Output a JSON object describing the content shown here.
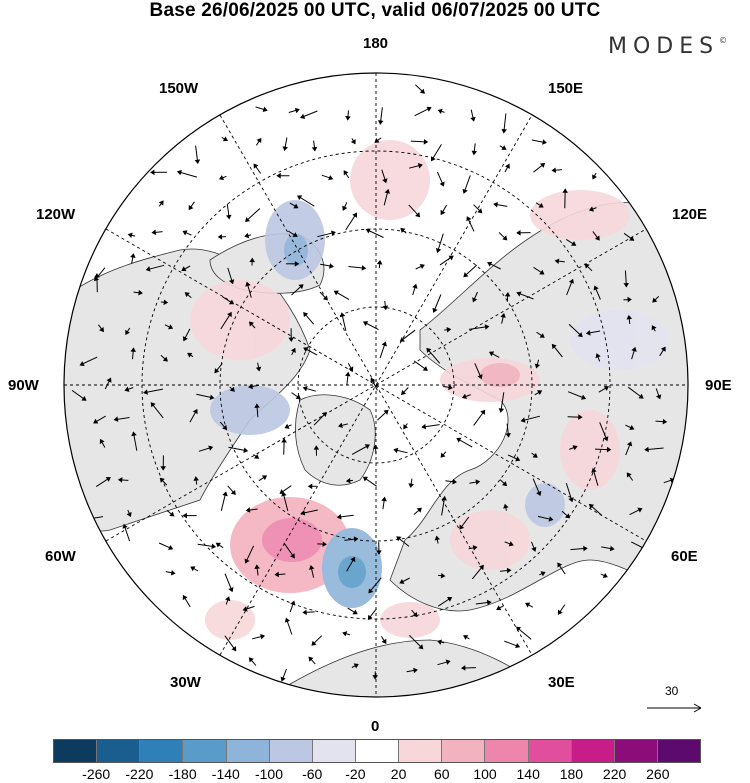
{
  "header": {
    "title": "Base 26/06/2025 00 UTC, valid 06/07/2025 00 UTC",
    "logo": "MODES",
    "logo_mark": "©"
  },
  "map": {
    "projection": "north-polar-stereographic",
    "labels": {
      "lon_180": "180",
      "lon_0": "0",
      "lon_150W": "150W",
      "lon_150E": "150E",
      "lon_120W": "120W",
      "lon_120E": "120E",
      "lon_90W": "90W",
      "lon_90E": "90E",
      "lon_60W": "60W",
      "lon_60E": "60E",
      "lon_30W": "30W",
      "lon_30E": "30E"
    },
    "reference_vector": "30",
    "land_color": "#e6e6e6",
    "ocean_color": "#ffffff"
  },
  "colorbar": {
    "ticks": [
      "-260",
      "-220",
      "-180",
      "-140",
      "-100",
      "-60",
      "-20",
      "20",
      "60",
      "100",
      "140",
      "180",
      "220",
      "260"
    ],
    "colors": [
      "#0d3b5e",
      "#1a5e8f",
      "#2f7fb8",
      "#5a9cc9",
      "#8fb4d9",
      "#bcc8e3",
      "#e3e3f0",
      "#ffffff",
      "#f7d7da",
      "#f3b2bf",
      "#ee86ac",
      "#e04e9d",
      "#c81d88",
      "#8c0d7a",
      "#5c0a6e"
    ]
  }
}
